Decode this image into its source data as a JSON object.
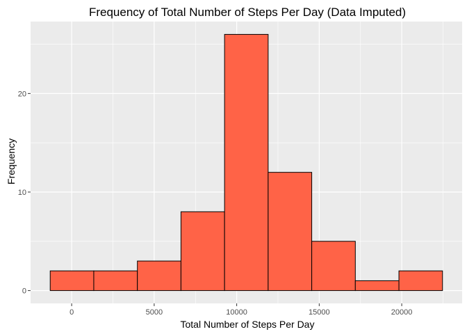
{
  "chart_data": {
    "type": "bar",
    "title": "Frequency of Total Number of Steps Per Day (Data Imputed)",
    "xlabel": "Total Number of Steps Per Day",
    "ylabel": "Frequency",
    "bins": [
      {
        "x0": -1301,
        "x1": 1340,
        "count": 2
      },
      {
        "x0": 1340,
        "x1": 3982,
        "count": 2
      },
      {
        "x0": 3982,
        "x1": 6623,
        "count": 3
      },
      {
        "x0": 6623,
        "x1": 9264,
        "count": 8
      },
      {
        "x0": 9264,
        "x1": 11906,
        "count": 26
      },
      {
        "x0": 11906,
        "x1": 14547,
        "count": 12
      },
      {
        "x0": 14547,
        "x1": 17188,
        "count": 5
      },
      {
        "x0": 17188,
        "x1": 19830,
        "count": 1
      },
      {
        "x0": 19830,
        "x1": 22471,
        "count": 2
      }
    ],
    "x_ticks": [
      0,
      5000,
      10000,
      15000,
      20000
    ],
    "y_ticks": [
      0,
      10,
      20
    ],
    "xlim": [
      -2490,
      23660
    ],
    "ylim": [
      -1.3,
      27.3
    ],
    "grid": true,
    "bar_fill": "#FF6347",
    "bar_stroke": "#000000",
    "panel_background": "#EBEBEB",
    "grid_color": "#FFFFFF"
  }
}
